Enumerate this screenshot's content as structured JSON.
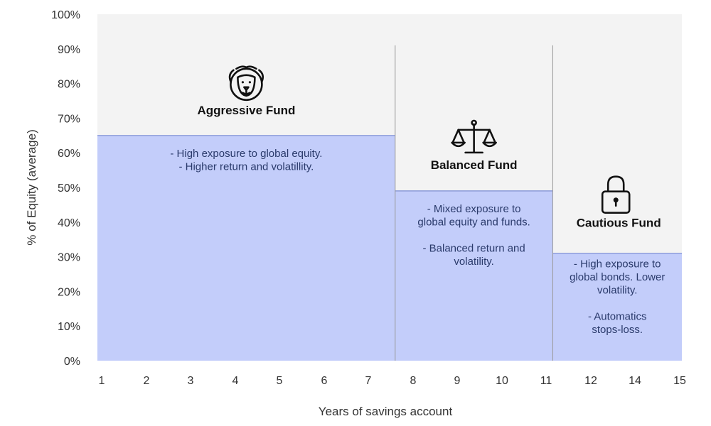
{
  "chart_data": {
    "type": "area",
    "title": "",
    "xlabel": "Years of savings account",
    "ylabel": "% of Equity (average)",
    "ylim": [
      0,
      100
    ],
    "y_ticks": [
      "0%",
      "10%",
      "20%",
      "30%",
      "40%",
      "50%",
      "60%",
      "70%",
      "80%",
      "90%",
      "100%"
    ],
    "x_ticks": [
      "1",
      "2",
      "3",
      "4",
      "5",
      "6",
      "7",
      "8",
      "9",
      "10",
      "11",
      "12",
      "14",
      "15"
    ],
    "grid": false,
    "colors": {
      "fill": "#c3cdfa",
      "edge": "#8a9ad8",
      "background": "#f3f3f3",
      "divider": "#9a9a9a"
    },
    "series": [
      {
        "name": "Aggressive Fund",
        "icon": "lion-icon",
        "x_start": "1",
        "x_end": "7.6",
        "equity_pct": 65,
        "description": [
          "- High exposure to global equity.",
          "- Higher return and volatillity."
        ]
      },
      {
        "name": "Balanced Fund",
        "icon": "scales-icon",
        "x_start": "7.6",
        "x_end": "11.15",
        "equity_pct": 49,
        "description": [
          "- Mixed exposure to",
          "global equity and funds.",
          "",
          "- Balanced return and",
          "volatility."
        ]
      },
      {
        "name": "Cautious Fund",
        "icon": "padlock-icon",
        "x_start": "11.15",
        "x_end": "15",
        "equity_pct": 31,
        "description": [
          "- High exposure to",
          "global bonds. Lower",
          "volatility.",
          "",
          "- Automatics",
          "stops-loss."
        ]
      }
    ]
  }
}
